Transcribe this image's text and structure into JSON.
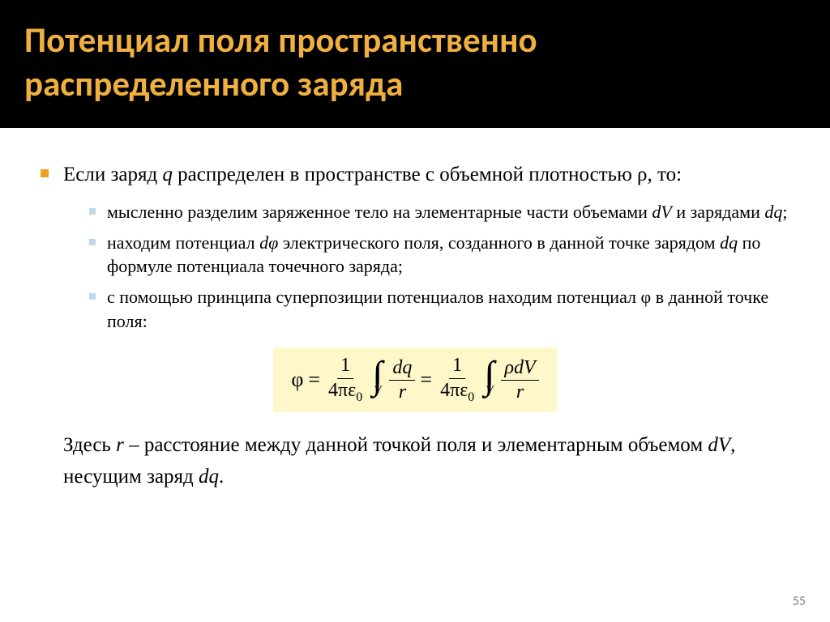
{
  "slide": {
    "title": "Потенциал поля пространственно распределенного заряда",
    "page_number": "55",
    "title_color": "#f0b040",
    "header_bg": "#000000",
    "body_bg": "#ffffff",
    "main_bullet_color": "#f0a020",
    "sub_bullet_color": "#c0d8e8",
    "formula_bg": "#fdf7ca",
    "title_fontsize": 43,
    "main_fontsize": 25,
    "sub_fontsize": 22
  },
  "main": {
    "intro_pre": "Если заряд ",
    "intro_q": "q",
    "intro_mid": " распределен в пространстве с объемной плотностью ",
    "intro_rho": "ρ",
    "intro_post": ", то:"
  },
  "sub1": {
    "pre": "мысленно разделим заряженное тело на элементарные части объемами ",
    "dv": "dV",
    "mid": " и зарядами ",
    "dq": "dq",
    "post": ";"
  },
  "sub2": {
    "pre": "находим потенциал ",
    "dphi": "dφ",
    "mid": " электрического поля, созданного в данной точке зарядом ",
    "dq": "dq",
    "post": " по формуле потенциала точечного заряда;"
  },
  "sub3": {
    "pre": "с помощью принципа суперпозиции потенциалов находим потенциал ",
    "phi": "φ",
    "post": " в данной точке поля:"
  },
  "formula": {
    "phi": "φ",
    "eq": " = ",
    "one": "1",
    "four_pi_eps": "4πε",
    "zero": "0",
    "int_lim": "V",
    "dq": "dq",
    "r": "r",
    "rho_dv": "ρdV"
  },
  "closing": {
    "pre": "Здесь ",
    "r": "r",
    "mid": " – расстояние между данной точкой поля и элементарным объемом ",
    "dv": "dV",
    "mid2": ", несущим заряд ",
    "dq": "dq",
    "post": "."
  }
}
